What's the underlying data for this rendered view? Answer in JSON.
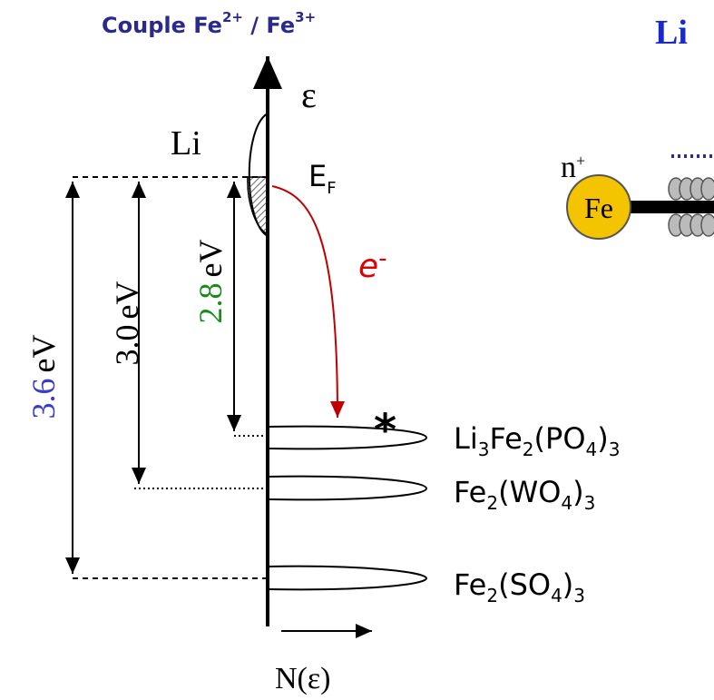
{
  "title": {
    "parts": [
      "Couple Fe",
      "2+",
      " / Fe",
      "3+"
    ]
  },
  "right_header": "Li",
  "axis": {
    "energy_symbol": "ε",
    "density_label": "N(ε)"
  },
  "metal": "Li",
  "fermi": {
    "parts": [
      "E",
      "F"
    ]
  },
  "electron": {
    "parts": [
      "e",
      "-"
    ]
  },
  "star": "*",
  "gaps": [
    {
      "value": "3.6",
      "unit": "eV"
    },
    {
      "value": "3.0",
      "unit": "eV"
    },
    {
      "value": "2.8",
      "unit": "eV"
    }
  ],
  "compounds": [
    {
      "parts": [
        "Li",
        "3",
        "Fe",
        "2",
        "(PO",
        "4",
        ")",
        "3"
      ]
    },
    {
      "parts": [
        "Fe",
        "2",
        "(WO",
        "4",
        ")",
        "3"
      ]
    },
    {
      "parts": [
        "Fe",
        "2",
        "(SO",
        "4",
        ")",
        "3"
      ]
    }
  ],
  "ion": {
    "charge": [
      "n",
      "+"
    ],
    "symbol": "Fe"
  }
}
